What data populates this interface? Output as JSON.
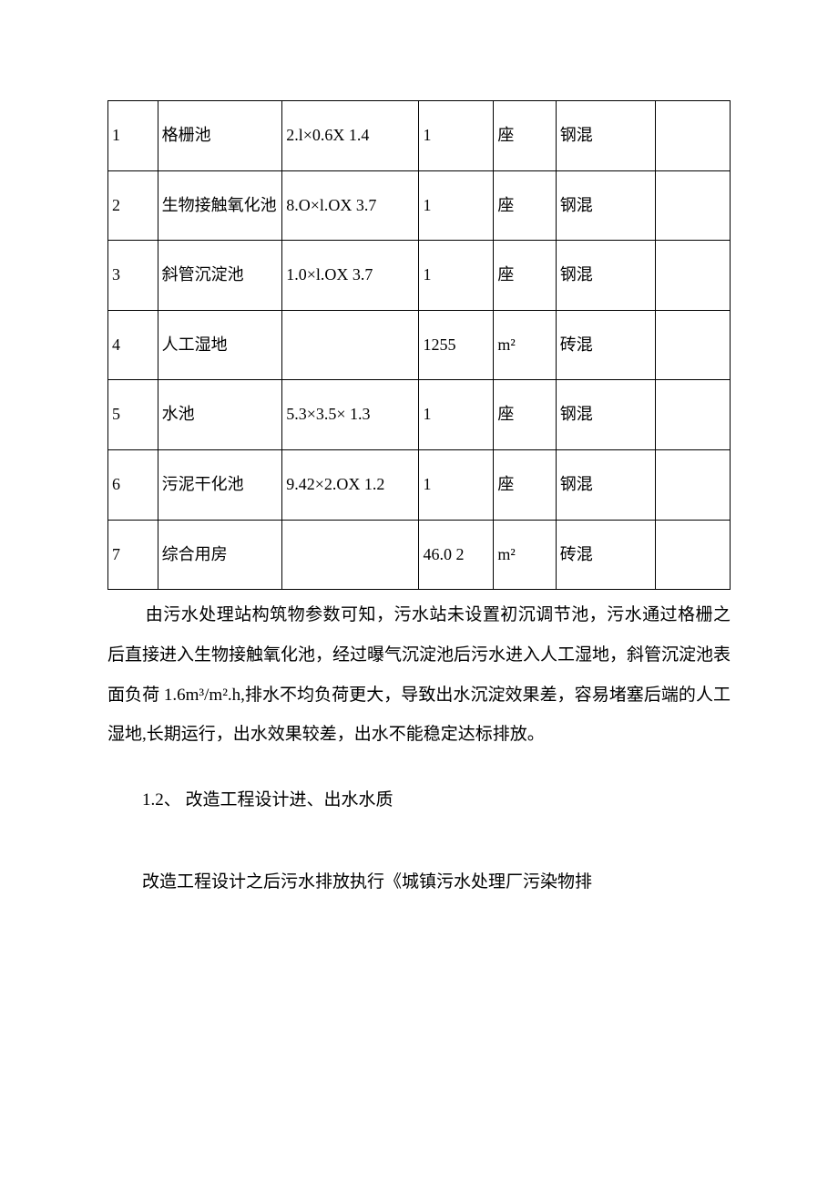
{
  "table": {
    "columns": [
      {
        "width": "8%"
      },
      {
        "width": "20%"
      },
      {
        "width": "22%"
      },
      {
        "width": "12%"
      },
      {
        "width": "10%"
      },
      {
        "width": "16%"
      },
      {
        "width": "12%"
      }
    ],
    "rows": [
      {
        "c1": "1",
        "c2": "格栅池",
        "c3": "2.l×0.6X 1.4",
        "c4": "1",
        "c5": "座",
        "c6": "钢混",
        "c7": ""
      },
      {
        "c1": "2",
        "c2": "生物接触氧化池",
        "c3": "8.O×l.OX 3.7",
        "c4": "1",
        "c5": "座",
        "c6": "钢混",
        "c7": ""
      },
      {
        "c1": "3",
        "c2": "斜管沉淀池",
        "c3": "1.0×l.OX 3.7",
        "c4": "1",
        "c5": "座",
        "c6": "钢混",
        "c7": ""
      },
      {
        "c1": "4",
        "c2": "人工湿地",
        "c3": "",
        "c4": "1255",
        "c5": "m²",
        "c6": "砖混",
        "c7": ""
      },
      {
        "c1": "5",
        "c2": "水池",
        "c3": "5.3×3.5× 1.3",
        "c4": "1",
        "c5": "座",
        "c6": "钢混",
        "c7": ""
      },
      {
        "c1": "6",
        "c2": "污泥干化池",
        "c3": "9.42×2.OX 1.2",
        "c4": "1",
        "c5": "座",
        "c6": "钢混",
        "c7": ""
      },
      {
        "c1": "7",
        "c2": "综合用房",
        "c3": "",
        "c4": "46.0 2",
        "c5": "m²",
        "c6": "砖混",
        "c7": ""
      }
    ],
    "border_color": "#000000",
    "cell_fontsize": 18
  },
  "paragraphs": {
    "p1": "由污水处理站构筑物参数可知，污水站未设置初沉调节池，污水通过格栅之后直接进入生物接触氧化池，经过曝气沉淀池后污水进入人工湿地，斜管沉淀池表面负荷 1.6m³/m².h,排水不均负荷更大，导致出水沉淀效果差，容易堵塞后端的人工湿地,长期运行，出水效果较差，出水不能稳定达标排放。",
    "section": "1.2、  改造工程设计进、出水水质",
    "p2": "改造工程设计之后污水排放执行《城镇污水处理厂污染物排"
  },
  "style": {
    "background_color": "#ffffff",
    "text_color": "#000000",
    "body_fontsize": 19
  }
}
